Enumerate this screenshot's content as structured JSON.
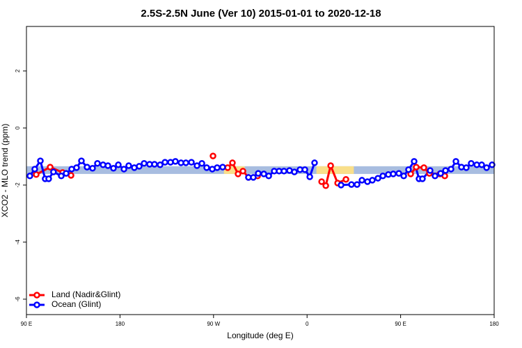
{
  "chart_data": {
    "type": "line",
    "title": "2.5S-2.5N June (Ver 10)   2015-01-01 to 2020-12-18",
    "xlabel": "Longitude (deg E)",
    "ylabel": "XCO2 - MLO trend (ppm)",
    "xlim": [
      90,
      540
    ],
    "ylim": [
      -6.54,
      3.56
    ],
    "xticks": [
      {
        "value": 90,
        "label": "90 E"
      },
      180,
      {
        "value": 270,
        "label": "90 W"
      },
      {
        "value": 360,
        "label": "0"
      },
      {
        "value": 450,
        "label": "90 E"
      },
      {
        "value": 540,
        "label": "180"
      }
    ],
    "yticks": [
      -6,
      -4,
      -2,
      0,
      2
    ],
    "legend": "bottomleft",
    "bands": [
      {
        "color": "#a8bde0",
        "xlim": [
          90,
          540
        ],
        "ylim": [
          -1.61,
          -1.34
        ]
      },
      {
        "color": "#f9df8a",
        "xlim": [
          280,
          300
        ],
        "ylim": [
          -1.61,
          -1.34
        ]
      },
      {
        "color": "#f9df8a",
        "xlim": [
          369,
          405
        ],
        "ylim": [
          -1.61,
          -1.34
        ]
      }
    ],
    "series": [
      {
        "name": "Land (Nadir&Glint)",
        "color": "#ff0000",
        "x": [
          99.4,
          112.8,
          124.8,
          132.9,
          null,
          269.5,
          null,
          283.6,
          288.2,
          293.6,
          298.3,
          303.6,
          312.4,
          null,
          374,
          378,
          382.7,
          389.4,
          397.4,
          null,
          459.7,
          465,
          472.4,
          477.7,
          487.8,
          492.5
        ],
        "values": [
          -1.63,
          -1.37,
          -1.56,
          -1.66,
          null,
          -0.98,
          null,
          -1.39,
          -1.22,
          -1.61,
          -1.51,
          -1.73,
          -1.68,
          null,
          -1.88,
          -2.02,
          -1.32,
          -1.93,
          -1.8,
          null,
          -1.61,
          -1.37,
          -1.39,
          -1.59,
          -1.61,
          -1.68
        ]
      },
      {
        "name": "Ocean (Glint)",
        "color": "#0000ff",
        "x": [
          93.3,
          98,
          103.4,
          108,
          111.4,
          116,
          123.5,
          128.2,
          133.5,
          138.2,
          142.9,
          148.3,
          153.6,
          158.3,
          163.7,
          168.4,
          173.7,
          178.4,
          183.8,
          188.4,
          193.8,
          198.5,
          203.2,
          208.5,
          213.2,
          218.6,
          223.3,
          228.6,
          233.3,
          238.7,
          243.4,
          248.7,
          254.1,
          258.8,
          263.4,
          268.8,
          273.5,
          278.8,
          null,
          303.6,
          308.3,
          313,
          318.4,
          323.1,
          328.4,
          333.1,
          337.8,
          343.1,
          347.8,
          353.2,
          357.9,
          362.6,
          367.2,
          null,
          392.7,
          402.7,
          408.1,
          412.8,
          418.1,
          422.8,
          428.2,
          432.9,
          438.2,
          442.9,
          448.3,
          453,
          457.6,
          463,
          467.7,
          471,
          478.4,
          483.1,
          488.5,
          493.2,
          498.5,
          503.2,
          508.5,
          513.2,
          517.9,
          523.3,
          528,
          532.7,
          538
        ],
        "values": [
          -1.68,
          -1.44,
          -1.15,
          -1.78,
          -1.78,
          -1.54,
          -1.68,
          -1.59,
          -1.44,
          -1.39,
          -1.15,
          -1.37,
          -1.41,
          -1.24,
          -1.29,
          -1.32,
          -1.41,
          -1.29,
          -1.44,
          -1.32,
          -1.39,
          -1.34,
          -1.24,
          -1.27,
          -1.27,
          -1.29,
          -1.2,
          -1.2,
          -1.17,
          -1.22,
          -1.22,
          -1.2,
          -1.32,
          -1.24,
          -1.39,
          -1.44,
          -1.39,
          -1.37,
          null,
          -1.73,
          -1.73,
          -1.59,
          -1.61,
          -1.68,
          -1.51,
          -1.51,
          -1.51,
          -1.49,
          -1.54,
          -1.46,
          -1.46,
          -1.71,
          -1.22,
          null,
          -2.0,
          -1.98,
          -1.98,
          -1.83,
          -1.88,
          -1.83,
          -1.76,
          -1.68,
          -1.63,
          -1.61,
          -1.59,
          -1.68,
          -1.46,
          -1.17,
          -1.78,
          -1.78,
          -1.49,
          -1.68,
          -1.59,
          -1.49,
          -1.44,
          -1.17,
          -1.37,
          -1.39,
          -1.24,
          -1.29,
          -1.29,
          -1.39,
          -1.29
        ]
      }
    ]
  }
}
